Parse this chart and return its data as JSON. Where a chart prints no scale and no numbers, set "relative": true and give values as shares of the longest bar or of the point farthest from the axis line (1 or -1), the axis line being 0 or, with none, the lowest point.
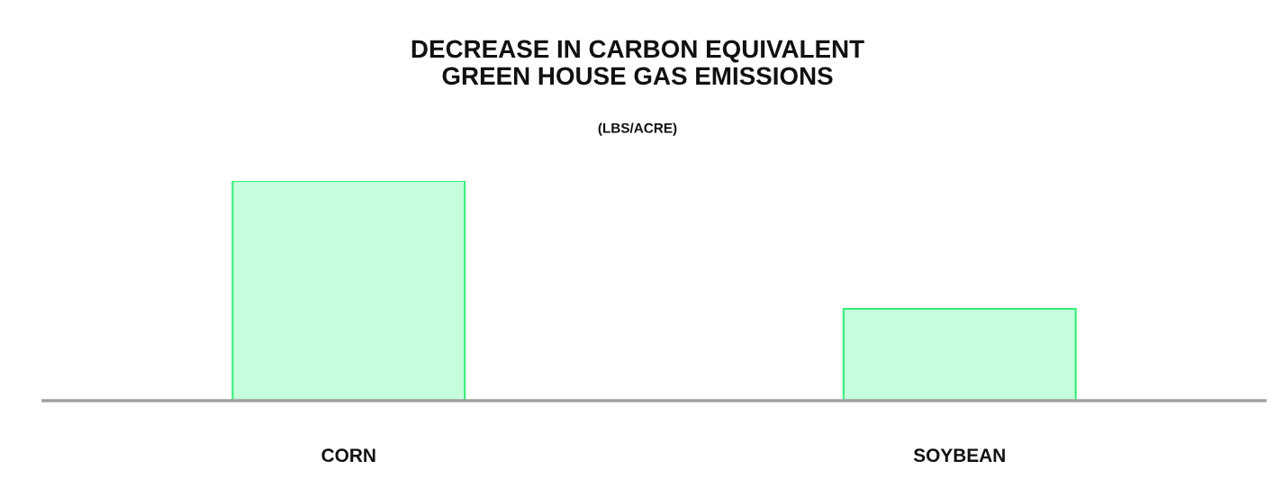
{
  "chart_data": {
    "type": "bar",
    "title": "DECREASE IN CARBON EQUIVALENT\nGREEN HOUSE GAS EMISSIONS",
    "subtitle": "(LBS/ACRE)",
    "categories": [
      "CORN",
      "SOYBEAN"
    ],
    "values": [
      1,
      0.418
    ],
    "color": "#c4fedc",
    "relative": true,
    "grid": false,
    "legend": false
  }
}
